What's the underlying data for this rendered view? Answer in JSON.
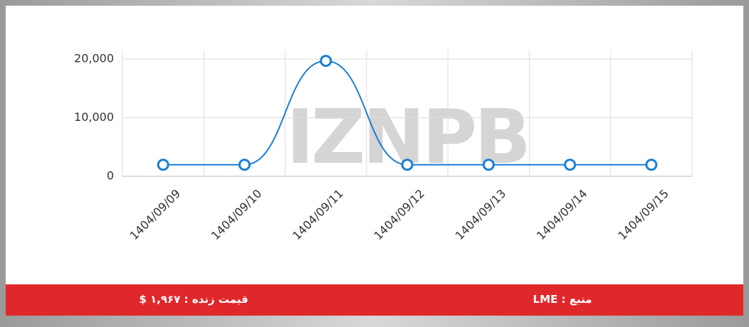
{
  "chart_data": {
    "type": "line",
    "watermark": "IZNPB",
    "categories": [
      "1404/09/09",
      "1404/09/10",
      "1404/09/11",
      "1404/09/12",
      "1404/09/13",
      "1404/09/14",
      "1404/09/15"
    ],
    "series": [
      {
        "name": "LME",
        "color": "#1a7fd4",
        "values": [
          1967,
          1967,
          19700,
          1967,
          1967,
          1967,
          1967
        ]
      }
    ],
    "ylim": [
      0,
      21600
    ],
    "yticks": [
      0,
      {
        "value": 10000,
        "label": "10,000"
      },
      {
        "value": 20000,
        "label": "20,000"
      }
    ],
    "grid": true
  },
  "footer": {
    "price": "قیمت زنده : ۱,۹۶۷ $",
    "source": "منبع : LME"
  }
}
